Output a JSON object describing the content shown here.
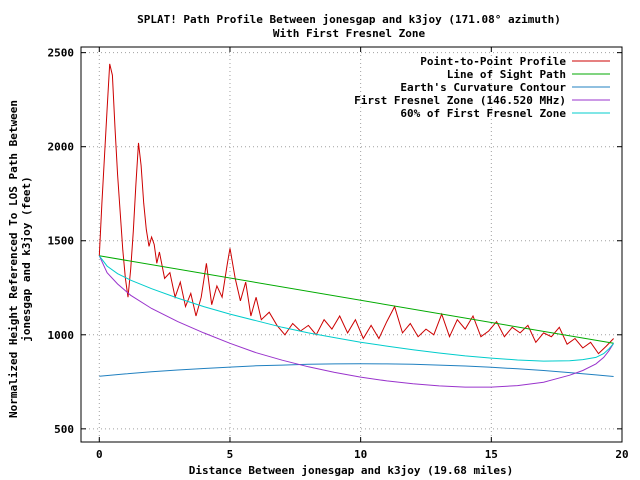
{
  "chart_data": {
    "type": "line",
    "title": "SPLAT! Path Profile Between jonesgap and k3joy (171.08° azimuth)",
    "subtitle": "With First Fresnel Zone",
    "xlabel": "Distance Between jonesgap and k3joy (19.68 miles)",
    "ylabel_line1": "Normalized Height Referenced To LOS Path Between",
    "ylabel_line2": "jonesgap and k3joy (feet)",
    "xlim": [
      -0.7,
      20
    ],
    "ylim": [
      430,
      2530
    ],
    "xticks": [
      0,
      5,
      10,
      15,
      20
    ],
    "yticks": [
      500,
      1000,
      1500,
      2000,
      2500
    ],
    "grid": true,
    "legend_position": "top-right",
    "series": [
      {
        "name": "Point-to-Point Profile",
        "color": "#cc0000",
        "x": [
          0,
          0.1,
          0.2,
          0.3,
          0.4,
          0.5,
          0.6,
          0.7,
          0.8,
          0.9,
          1.0,
          1.1,
          1.2,
          1.3,
          1.4,
          1.5,
          1.6,
          1.7,
          1.8,
          1.9,
          2.0,
          2.1,
          2.2,
          2.3,
          2.5,
          2.7,
          2.9,
          3.1,
          3.3,
          3.5,
          3.7,
          3.9,
          4.1,
          4.3,
          4.5,
          4.7,
          4.9,
          5.0,
          5.2,
          5.4,
          5.6,
          5.8,
          6.0,
          6.2,
          6.5,
          6.8,
          7.1,
          7.4,
          7.7,
          8.0,
          8.3,
          8.6,
          8.9,
          9.2,
          9.5,
          9.8,
          10.1,
          10.4,
          10.7,
          11.0,
          11.3,
          11.6,
          11.9,
          12.2,
          12.5,
          12.8,
          13.1,
          13.4,
          13.7,
          14.0,
          14.3,
          14.6,
          14.9,
          15.2,
          15.5,
          15.8,
          16.1,
          16.4,
          16.7,
          17.0,
          17.3,
          17.6,
          17.9,
          18.2,
          18.5,
          18.8,
          19.1,
          19.4,
          19.68
        ],
        "y": [
          1420,
          1700,
          1950,
          2200,
          2440,
          2380,
          2100,
          1850,
          1650,
          1450,
          1300,
          1200,
          1350,
          1550,
          1800,
          2020,
          1900,
          1700,
          1560,
          1470,
          1520,
          1480,
          1380,
          1440,
          1300,
          1330,
          1200,
          1280,
          1150,
          1220,
          1100,
          1200,
          1380,
          1160,
          1260,
          1200,
          1380,
          1460,
          1300,
          1180,
          1280,
          1100,
          1200,
          1080,
          1120,
          1050,
          1000,
          1060,
          1020,
          1050,
          1000,
          1080,
          1030,
          1100,
          1010,
          1080,
          980,
          1050,
          980,
          1070,
          1150,
          1010,
          1060,
          990,
          1030,
          1000,
          1110,
          990,
          1080,
          1030,
          1100,
          990,
          1020,
          1070,
          990,
          1040,
          1010,
          1050,
          960,
          1010,
          990,
          1040,
          950,
          980,
          930,
          960,
          900,
          940,
          980
        ]
      },
      {
        "name": "Line of Sight Path",
        "color": "#00aa00",
        "x": [
          0,
          19.68
        ],
        "y": [
          1420,
          955
        ]
      },
      {
        "name": "Earth's Curvature Contour",
        "color": "#2080c0",
        "x": [
          0,
          1,
          2,
          3,
          4,
          5,
          6,
          7,
          8,
          9,
          10,
          11,
          12,
          13,
          14,
          15,
          16,
          17,
          18,
          19,
          19.68
        ],
        "y": [
          780,
          792,
          803,
          813,
          821,
          828,
          835,
          839,
          843,
          845,
          846,
          845,
          843,
          839,
          834,
          827,
          819,
          810,
          799,
          787,
          778
        ]
      },
      {
        "name": "First Fresnel Zone (146.520 MHz)",
        "color": "#9933cc",
        "x": [
          0,
          0.3,
          0.7,
          1.2,
          2,
          3,
          4,
          5,
          6,
          7,
          8,
          9,
          10,
          11,
          12,
          13,
          14,
          15,
          16,
          17,
          18,
          18.5,
          19,
          19.3,
          19.5,
          19.68
        ],
        "y": [
          1420,
          1330,
          1270,
          1210,
          1140,
          1070,
          1010,
          955,
          905,
          865,
          830,
          800,
          775,
          755,
          740,
          728,
          722,
          722,
          730,
          748,
          785,
          810,
          845,
          880,
          915,
          955
        ]
      },
      {
        "name": "60% of First Fresnel Zone",
        "color": "#00cccc",
        "x": [
          0,
          0.3,
          0.7,
          1.2,
          2,
          3,
          4,
          5,
          6,
          7,
          8,
          9,
          10,
          11,
          12,
          13,
          14,
          15,
          16,
          17,
          18,
          18.5,
          19,
          19.3,
          19.5,
          19.68
        ],
        "y": [
          1420,
          1365,
          1325,
          1290,
          1245,
          1195,
          1150,
          1110,
          1075,
          1040,
          1010,
          985,
          960,
          940,
          920,
          903,
          888,
          876,
          866,
          860,
          862,
          868,
          880,
          900,
          925,
          955
        ]
      }
    ]
  }
}
